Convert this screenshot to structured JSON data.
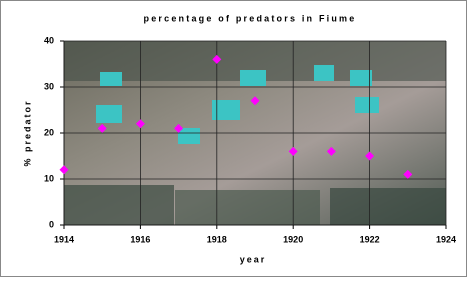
{
  "chart_data": {
    "type": "scatter",
    "title": "percentage of predators in Fiume",
    "x_label": "year",
    "y_label": "% predator",
    "x": [
      1914,
      1915,
      1916,
      1917,
      1918,
      1919,
      1920,
      1921,
      1922,
      1923
    ],
    "values": [
      12,
      21,
      22,
      21,
      36,
      27,
      16,
      16,
      15,
      11
    ],
    "color": "#ff00ff",
    "xlim": [
      1914,
      1924
    ],
    "xticks": [
      1914,
      1916,
      1918,
      1920,
      1922,
      1924
    ],
    "ylim": [
      0,
      40
    ],
    "yticks": [
      0,
      10,
      20,
      30,
      40
    ],
    "grid": true
  }
}
